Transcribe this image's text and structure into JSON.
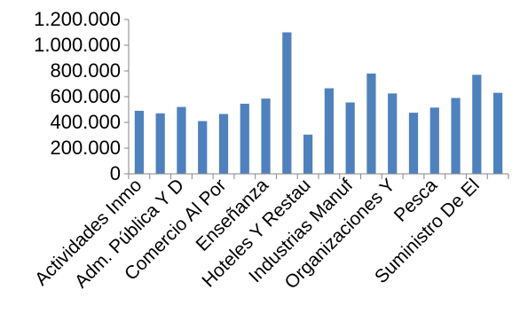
{
  "chart_data": {
    "type": "bar",
    "categories": [
      "Actividades Inmo",
      "",
      "Adm. Pública Y D",
      "",
      "Comercio Al Por",
      "",
      "Enseñanza",
      "",
      "Hoteles Y Restau",
      "",
      "Industrias Manuf",
      "",
      "Organizaciones Y",
      "",
      "Pesca",
      "",
      "Suministro De El",
      ""
    ],
    "values": [
      490000,
      470000,
      520000,
      410000,
      465000,
      545000,
      585000,
      1100000,
      305000,
      665000,
      555000,
      780000,
      625000,
      475000,
      515000,
      590000,
      770000,
      630000
    ],
    "y_ticks": [
      "0",
      "200.000",
      "400.000",
      "600.000",
      "800.000",
      "1.000.000",
      "1.200.000"
    ],
    "ylim": [
      0,
      1200000
    ],
    "title": "",
    "xlabel": "",
    "ylabel": "",
    "grid": false,
    "legend": "none",
    "bar_color": "#4f81bd",
    "axis_color": "#868686"
  }
}
